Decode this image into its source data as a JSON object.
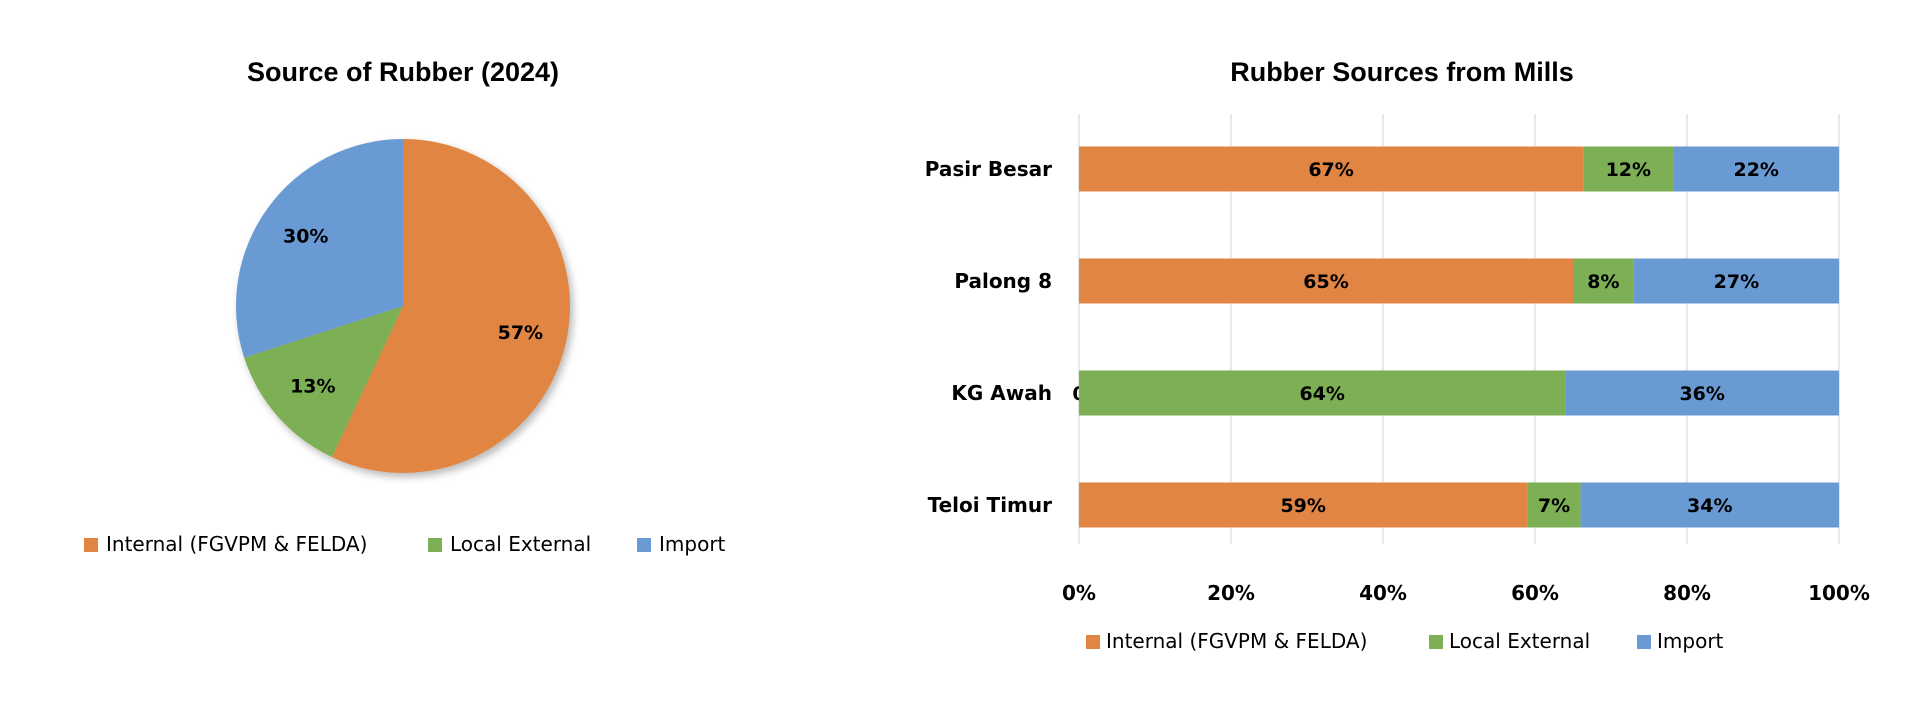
{
  "chart_data": [
    {
      "type": "pie",
      "title": "Source of Rubber (2024)",
      "categories": [
        "Internal (FGVPM & FELDA)",
        "Local External",
        "Import"
      ],
      "values": [
        57,
        13,
        30
      ],
      "value_labels": [
        "57%",
        "13%",
        "30%"
      ],
      "colors": [
        "#E08543",
        "#7DAF54",
        "#6A9AD3"
      ],
      "legend": "bottom"
    },
    {
      "type": "bar",
      "orientation": "horizontal",
      "stacked": "percent",
      "title": "Rubber Sources from Mills",
      "categories": [
        "Pasir Besar",
        "Palong 8",
        "KG Awah",
        "Teloi Timur"
      ],
      "series": [
        {
          "name": "Internal (FGVPM & FELDA)",
          "color": "#E08543",
          "values": [
            67,
            65,
            0,
            59
          ],
          "labels": [
            "67%",
            "65%",
            "0",
            "59%"
          ]
        },
        {
          "name": "Local External",
          "color": "#7DAF54",
          "values": [
            12,
            8,
            64,
            7
          ],
          "labels": [
            "12%",
            "8%",
            "64%",
            "7%"
          ]
        },
        {
          "name": "Import",
          "color": "#6A9AD3",
          "values": [
            22,
            27,
            36,
            34
          ],
          "labels": [
            "22%",
            "27%",
            "36%",
            "34%"
          ]
        }
      ],
      "xlim": [
        0,
        100
      ],
      "x_ticks": [
        "0%",
        "20%",
        "40%",
        "60%",
        "80%",
        "100%"
      ],
      "grid": true,
      "legend": "bottom"
    }
  ]
}
